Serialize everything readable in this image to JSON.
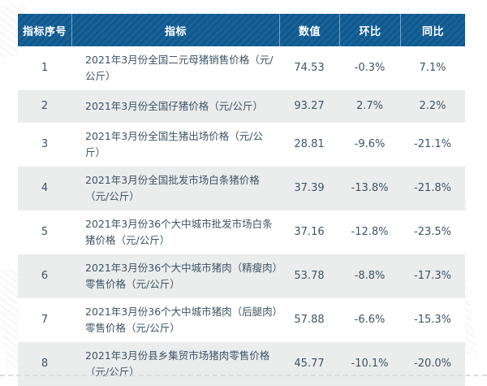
{
  "chart_data": {
    "type": "table",
    "title": "",
    "columns": [
      "指标序号",
      "指标",
      "数值",
      "环比",
      "同比"
    ],
    "rows": [
      {
        "seq": "1",
        "indicator": "2021年3月份全国二元母猪销售价格（元/公斤）",
        "value": "74.53",
        "mom": "-0.3%",
        "yoy": "7.1%"
      },
      {
        "seq": "2",
        "indicator": "2021年3月份全国仔猪价格（元/公斤）",
        "value": "93.27",
        "mom": "2.7%",
        "yoy": "2.2%"
      },
      {
        "seq": "3",
        "indicator": "2021年3月份全国生猪出场价格（元/公斤）",
        "value": "28.81",
        "mom": "-9.6%",
        "yoy": "-21.1%"
      },
      {
        "seq": "4",
        "indicator": "2021年3月份全国批发市场白条猪价格（元/公斤）",
        "value": "37.39",
        "mom": "-13.8%",
        "yoy": "-21.8%"
      },
      {
        "seq": "5",
        "indicator": "2021年3月份36个大中城市批发市场白条猪价格（元/公斤）",
        "value": "37.16",
        "mom": "-12.8%",
        "yoy": "-23.5%"
      },
      {
        "seq": "6",
        "indicator": "2021年3月份36个大中城市猪肉（精瘦肉）零售价格（元/公斤）",
        "value": "53.78",
        "mom": "-8.8%",
        "yoy": "-17.3%"
      },
      {
        "seq": "7",
        "indicator": "2021年3月份36个大中城市猪肉（后腿肉）零售价格（元/公斤）",
        "value": "57.88",
        "mom": "-6.6%",
        "yoy": "-15.3%"
      },
      {
        "seq": "8",
        "indicator": "2021年3月份县乡集贸市场猪肉零售价格（元/公斤）",
        "value": "45.77",
        "mom": "-10.1%",
        "yoy": "-20.0%"
      }
    ]
  },
  "colors": {
    "header_bg": "#12578b",
    "header_stripe": "#17649c",
    "header_text": "#ffffff",
    "row_bg": "#ffffff",
    "row_alt_bg": "#ebecec",
    "body_text": "#3d5568"
  }
}
